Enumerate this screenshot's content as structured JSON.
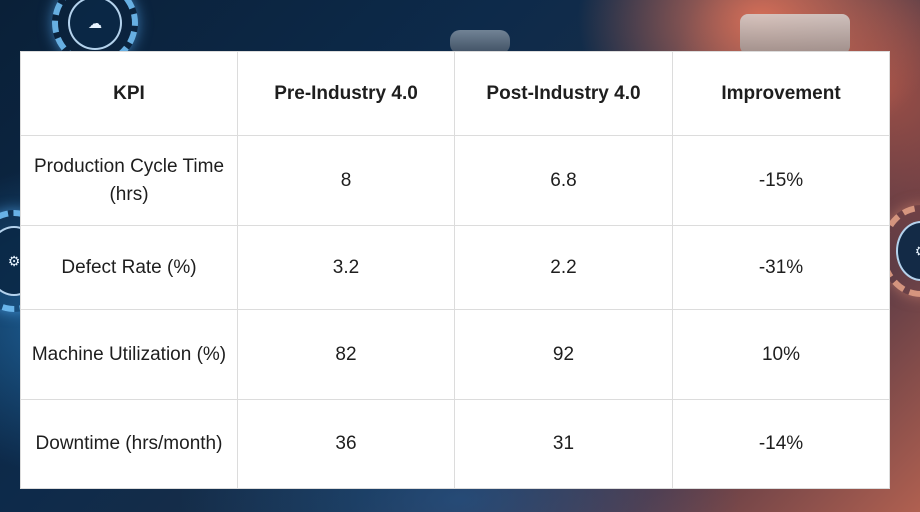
{
  "table": {
    "headers": [
      "KPI",
      "Pre-Industry 4.0",
      "Post-Industry 4.0",
      "Improvement"
    ],
    "rows": [
      [
        "Production Cycle Time (hrs)",
        "8",
        "6.8",
        "-15%"
      ],
      [
        "Defect Rate (%)",
        "3.2",
        "2.2",
        "-31%"
      ],
      [
        "Machine Utilization (%)",
        "82",
        "92",
        "10%"
      ],
      [
        "Downtime (hrs/month)",
        "36",
        "31",
        "-14%"
      ]
    ]
  },
  "background": {
    "icons": [
      "cloud-gear-icon",
      "robot-gear-icon",
      "gear-icon"
    ]
  },
  "colors": {
    "header_text": "#1e1e1e",
    "cell_border": "#dcdcdc",
    "card_bg": "#ffffff"
  }
}
